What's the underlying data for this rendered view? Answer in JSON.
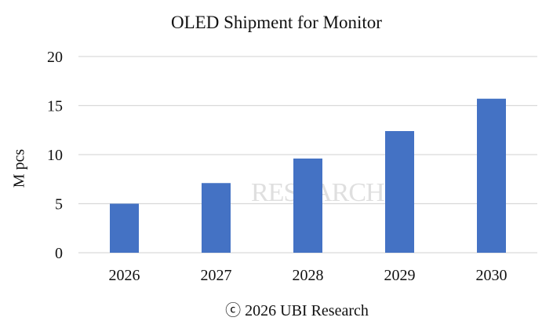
{
  "chart_data": {
    "type": "bar",
    "title": "OLED Shipment for Monitor",
    "xlabel": "",
    "ylabel": "M pcs",
    "categories": [
      "2026",
      "2027",
      "2028",
      "2029",
      "2030"
    ],
    "values": [
      5.0,
      7.1,
      9.6,
      12.4,
      15.7
    ],
    "ylim": [
      0,
      20
    ],
    "yticks": [
      0,
      5,
      10,
      15,
      20
    ],
    "grid": true,
    "legend": "none",
    "bar_color": "#4472C4"
  },
  "watermark": "RESEARCH",
  "copyright": "ⓒ 2026 UBI Research"
}
